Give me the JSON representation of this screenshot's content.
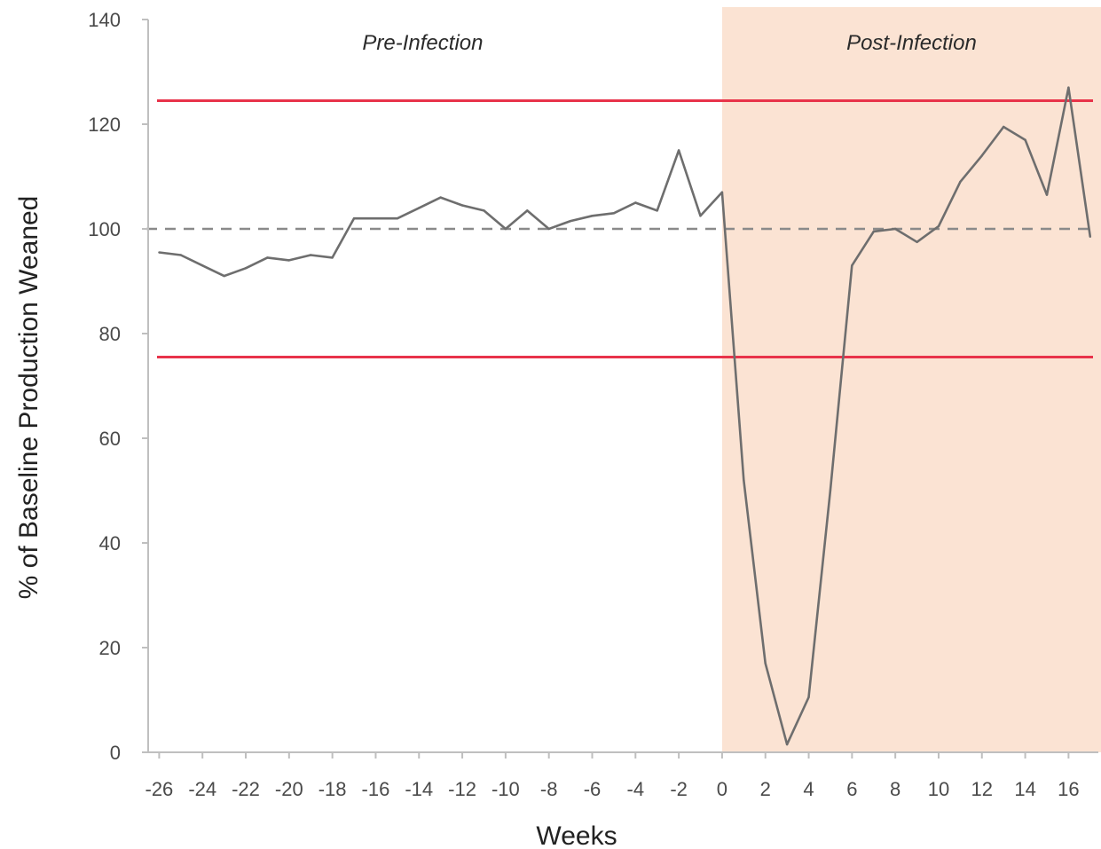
{
  "chart_data": {
    "type": "line",
    "title": "",
    "xlabel": "Weeks",
    "ylabel": "% of Baseline Production Weaned",
    "xlim": [
      -27,
      17.5
    ],
    "ylim": [
      0,
      140
    ],
    "x_ticks": [
      -26,
      -24,
      -22,
      -20,
      -18,
      -16,
      -14,
      -12,
      -10,
      -8,
      -6,
      -4,
      -2,
      0,
      2,
      4,
      6,
      8,
      10,
      12,
      14,
      16
    ],
    "y_ticks": [
      0,
      20,
      40,
      60,
      80,
      100,
      120,
      140
    ],
    "grid": false,
    "regions": [
      {
        "label": "Pre-Infection",
        "x_start": -27,
        "x_end": 0,
        "color": "#ffffff"
      },
      {
        "label": "Post-Infection",
        "x_start": 0,
        "x_end": 17.5,
        "color": "#fbe3d3"
      }
    ],
    "reference_lines": [
      {
        "y": 124.5,
        "style": "solid",
        "color": "#e8334a"
      },
      {
        "y": 75.5,
        "style": "solid",
        "color": "#e8334a"
      },
      {
        "y": 100,
        "style": "dashed",
        "color": "#8a8a8a"
      }
    ],
    "series": [
      {
        "color": "#6e6e6e",
        "x": [
          -26,
          -25,
          -24,
          -23,
          -22,
          -21,
          -20,
          -19,
          -18,
          -17,
          -16,
          -15,
          -14,
          -13,
          -12,
          -11,
          -10,
          -9,
          -8,
          -7,
          -6,
          -5,
          -4,
          -3,
          -2,
          -1,
          0,
          1,
          2,
          3,
          4,
          5,
          6,
          7,
          8,
          9,
          10,
          11,
          12,
          13,
          14,
          15,
          16,
          17
        ],
        "y": [
          95.5,
          95,
          93,
          91,
          92.5,
          94.5,
          94,
          95,
          94.5,
          102,
          102,
          102,
          104,
          106,
          104.5,
          103.5,
          100,
          103.5,
          100,
          101.5,
          102.5,
          103,
          105,
          103.5,
          115,
          102.5,
          107,
          52,
          17,
          1.5,
          10.5,
          50,
          93,
          99.5,
          100,
          97.5,
          100.5,
          109,
          114,
          119.5,
          117,
          106.5,
          127,
          98.5
        ]
      }
    ]
  }
}
